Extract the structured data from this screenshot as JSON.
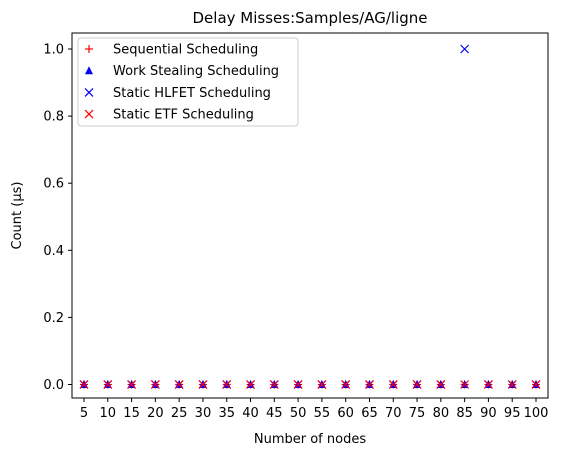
{
  "chart_data": {
    "type": "scatter",
    "title": "Delay Misses:Samples/AG/ligne",
    "xlabel": "Number of nodes",
    "ylabel": "Count (µs)",
    "x": [
      5,
      10,
      15,
      20,
      25,
      30,
      35,
      40,
      45,
      50,
      55,
      60,
      65,
      70,
      75,
      80,
      85,
      90,
      95,
      100
    ],
    "xticks": [
      "5",
      "10",
      "15",
      "20",
      "25",
      "30",
      "35",
      "40",
      "45",
      "50",
      "55",
      "60",
      "65",
      "70",
      "75",
      "80",
      "85",
      "90",
      "95",
      "100"
    ],
    "yticks": [
      "0.0",
      "0.2",
      "0.4",
      "0.6",
      "0.8",
      "1.0"
    ],
    "ytick_values": [
      0.0,
      0.2,
      0.4,
      0.6,
      0.8,
      1.0
    ],
    "ylim": [
      -0.05,
      1.05
    ],
    "legend_position": "top-left",
    "grid": false,
    "series": [
      {
        "name": "Sequential Scheduling",
        "marker": "plus",
        "color": "#ff0000",
        "values": [
          0,
          0,
          0,
          0,
          0,
          0,
          0,
          0,
          0,
          0,
          0,
          0,
          0,
          0,
          0,
          0,
          0,
          0,
          0,
          0
        ]
      },
      {
        "name": "Work Stealing Scheduling",
        "marker": "triangle",
        "color": "#0000ff",
        "values": [
          0,
          0,
          0,
          0,
          0,
          0,
          0,
          0,
          0,
          0,
          0,
          0,
          0,
          0,
          0,
          0,
          0,
          0,
          0,
          0
        ]
      },
      {
        "name": "Static HLFET Scheduling",
        "marker": "x",
        "color": "#0000ff",
        "values": [
          0,
          0,
          0,
          0,
          0,
          0,
          0,
          0,
          0,
          0,
          0,
          0,
          0,
          0,
          0,
          0,
          1,
          0,
          0,
          0
        ]
      },
      {
        "name": "Static ETF Scheduling",
        "marker": "x",
        "color": "#ff0000",
        "values": [
          0,
          0,
          0,
          0,
          0,
          0,
          0,
          0,
          0,
          0,
          0,
          0,
          0,
          0,
          0,
          0,
          0,
          0,
          0,
          0
        ]
      }
    ]
  }
}
